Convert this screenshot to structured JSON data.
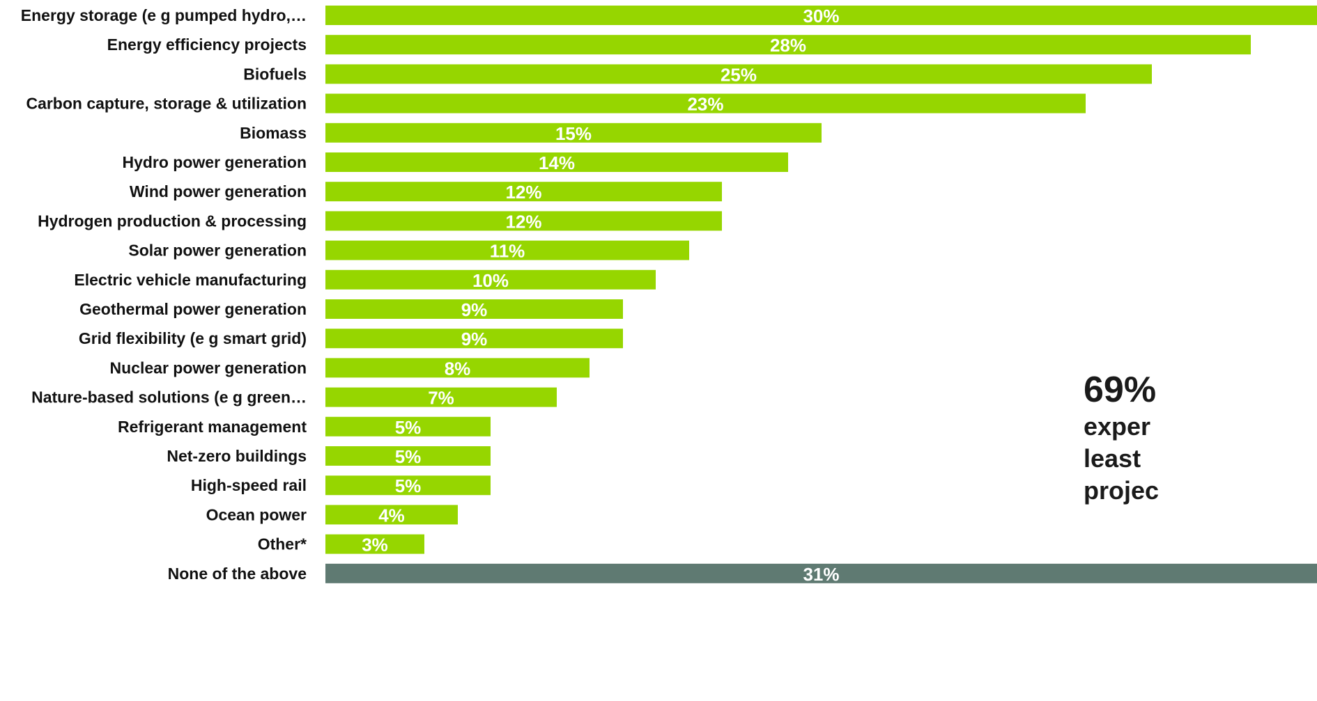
{
  "chart_data": {
    "type": "bar",
    "orientation": "horizontal",
    "categories": [
      "Energy storage (e g pumped hydro,…",
      "Energy efficiency projects",
      "Biofuels",
      "Carbon capture, storage & utilization",
      "Biomass",
      "Hydro power generation",
      "Wind power generation",
      "Hydrogen production & processing",
      "Solar power generation",
      "Electric vehicle manufacturing",
      "Geothermal power generation",
      "Grid flexibility (e g smart grid)",
      "Nuclear power generation",
      "Nature-based solutions (e g green…",
      "Refrigerant management",
      "Net-zero buildings",
      "High-speed rail",
      "Ocean power",
      "Other*",
      "None of the above"
    ],
    "values": [
      30,
      28,
      25,
      23,
      15,
      14,
      12,
      12,
      11,
      10,
      9,
      9,
      8,
      7,
      5,
      5,
      5,
      4,
      3,
      31
    ],
    "value_labels": [
      "30%",
      "28%",
      "25%",
      "23%",
      "15%",
      "14%",
      "12%",
      "12%",
      "11%",
      "10%",
      "9%",
      "9%",
      "8%",
      "7%",
      "5%",
      "5%",
      "5%",
      "4%",
      "3%",
      "31%"
    ],
    "unit": "%",
    "xlim": [
      0,
      30
    ],
    "grid": false,
    "legend": false,
    "colors": {
      "bar": "#96d600",
      "none_of_the_above_bar": "#5f7a72",
      "value_label": "#ffffff",
      "category_label": "#111111"
    }
  },
  "callout": {
    "value": "69%",
    "lines": [
      "exper",
      "least",
      "projec"
    ]
  }
}
